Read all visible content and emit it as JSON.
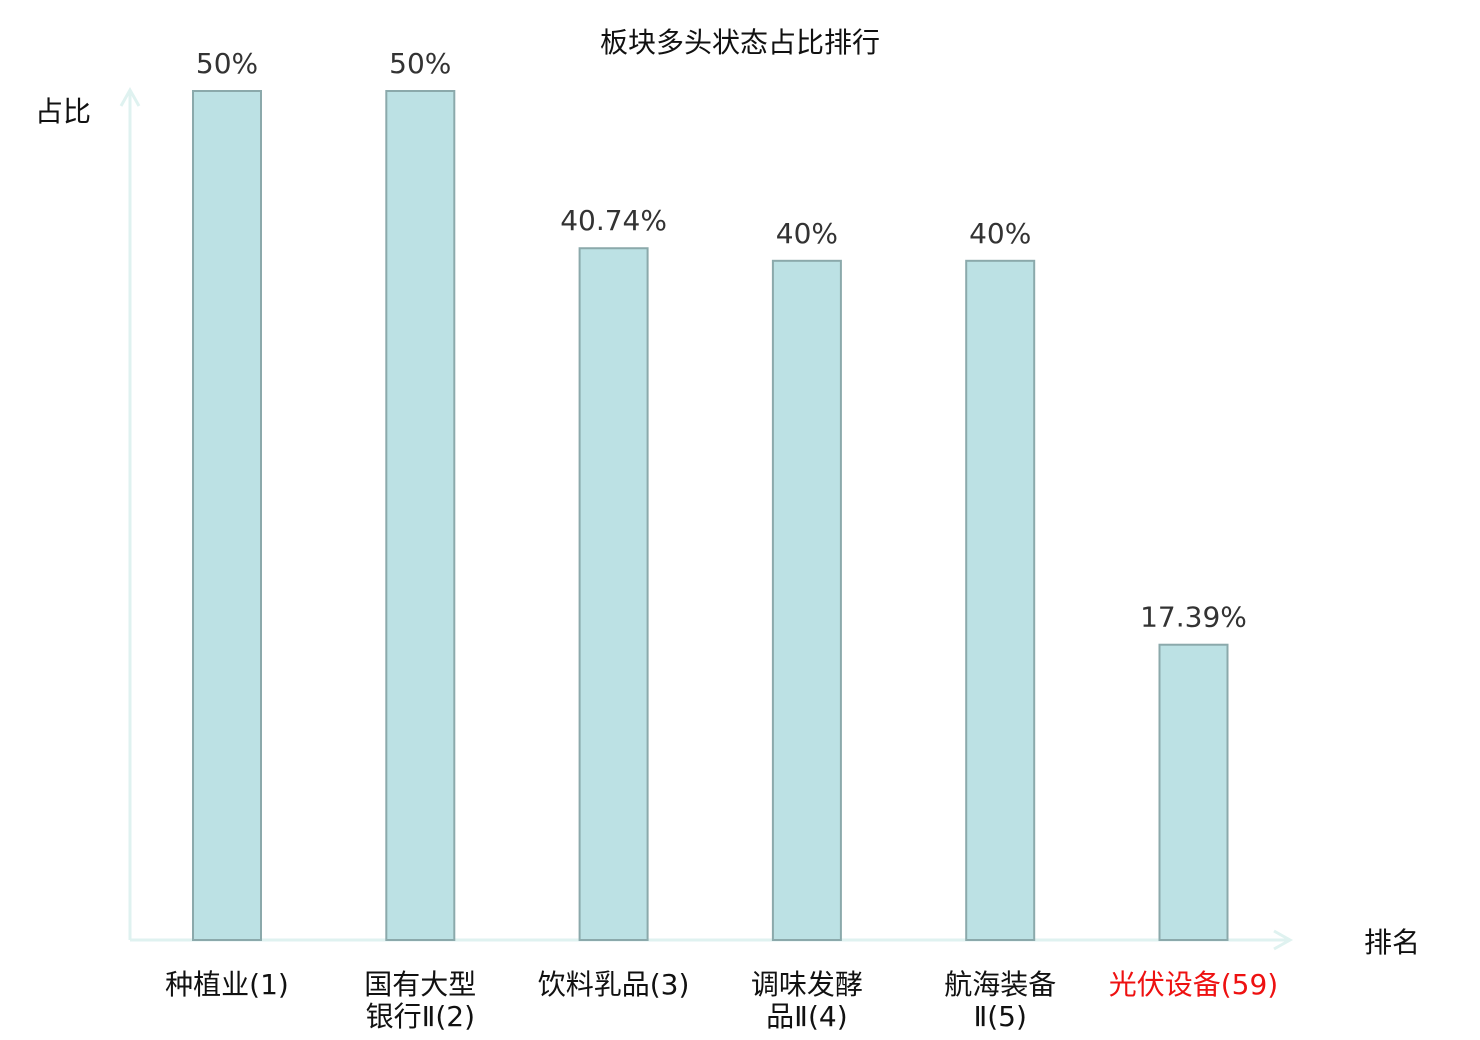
{
  "chart_data": {
    "type": "bar",
    "title": "板块多头状态占比排行",
    "ylabel": "占比",
    "xlabel": "排名",
    "ylim": [
      0,
      50
    ],
    "grid": false,
    "categories": [
      [
        "种植业(1)"
      ],
      [
        "国有大型",
        "银行Ⅱ(2)"
      ],
      [
        "饮料乳品(3)"
      ],
      [
        "调味发酵",
        "品Ⅱ(4)"
      ],
      [
        "航海装备",
        "Ⅱ(5)"
      ],
      [
        "光伏设备(59)"
      ]
    ],
    "values": [
      50,
      50,
      40.74,
      40,
      40,
      17.39
    ],
    "data_labels": [
      "50%",
      "50%",
      "40.74%",
      "40%",
      "40%",
      "17.39%"
    ],
    "highlight_index": 5,
    "colors": {
      "bar_fill": "#bce1e4",
      "bar_stroke": "#8ba9ab",
      "axis": "#dff2f0",
      "label": "#333333",
      "category": "#111111",
      "highlight": "#ee1111"
    }
  }
}
